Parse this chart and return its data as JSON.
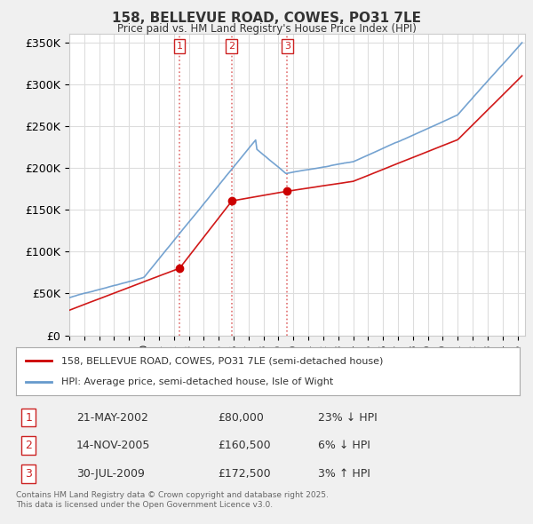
{
  "title": "158, BELLEVUE ROAD, COWES, PO31 7LE",
  "subtitle": "Price paid vs. HM Land Registry's House Price Index (HPI)",
  "ylim": [
    0,
    360000
  ],
  "yticks": [
    0,
    50000,
    100000,
    150000,
    200000,
    250000,
    300000,
    350000
  ],
  "ytick_labels": [
    "£0",
    "£50K",
    "£100K",
    "£150K",
    "£200K",
    "£250K",
    "£300K",
    "£350K"
  ],
  "xlim_start": 1995.0,
  "xlim_end": 2025.5,
  "sale_dates": [
    2002.38,
    2005.87,
    2009.58
  ],
  "sale_prices": [
    80000,
    160500,
    172500
  ],
  "sale_labels": [
    "1",
    "2",
    "3"
  ],
  "vline_color": "#e07070",
  "vline_style": ":",
  "sale_color": "#cc0000",
  "hpi_color": "#6699cc",
  "background_color": "#f0f0f0",
  "plot_bg_color": "#ffffff",
  "grid_color": "#dddddd",
  "legend_entries": [
    "158, BELLEVUE ROAD, COWES, PO31 7LE (semi-detached house)",
    "HPI: Average price, semi-detached house, Isle of Wight"
  ],
  "table_rows": [
    {
      "num": "1",
      "date": "21-MAY-2002",
      "price": "£80,000",
      "pct": "23%",
      "dir": "↓",
      "vs": "HPI"
    },
    {
      "num": "2",
      "date": "14-NOV-2005",
      "price": "£160,500",
      "pct": "6%",
      "dir": "↓",
      "vs": "HPI"
    },
    {
      "num": "3",
      "date": "30-JUL-2009",
      "price": "£172,500",
      "pct": "3%",
      "dir": "↑",
      "vs": "HPI"
    }
  ],
  "footer": "Contains HM Land Registry data © Crown copyright and database right 2025.\nThis data is licensed under the Open Government Licence v3.0."
}
